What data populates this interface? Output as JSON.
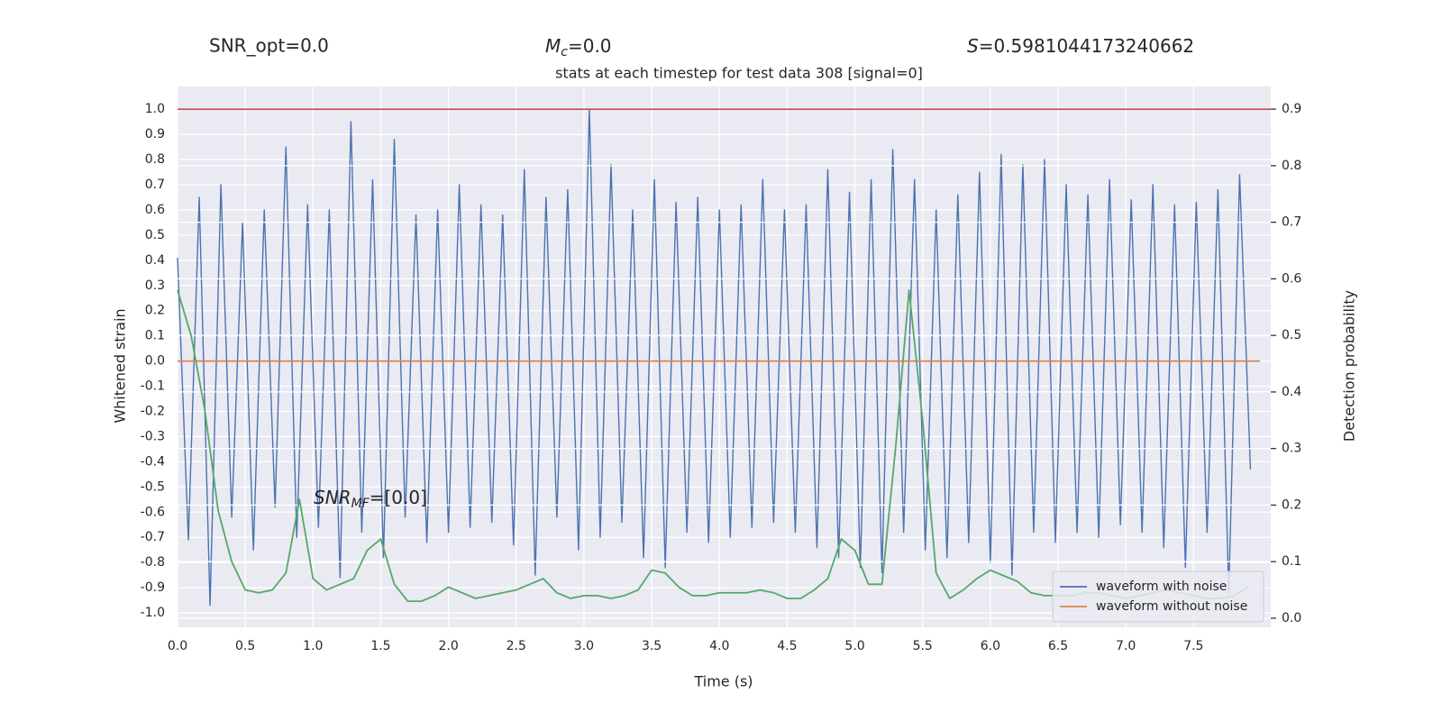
{
  "chart_data": {
    "type": "line",
    "title": "stats at each timestep for test data 308 [signal=0]",
    "annotations": {
      "snr_opt": "SNR_opt=0.0",
      "mc": {
        "main": "M",
        "sub": "c",
        "rest": "=0.0"
      },
      "s": {
        "main": "S",
        "rest": "=0.5981044173240662"
      },
      "snr_mf": {
        "main": "SNR",
        "sub": "MF",
        "rest": "=[0.0]"
      }
    },
    "xlabel": "Time (s)",
    "ylabel": "Whitened strain",
    "y2label": "Detection probability",
    "xlim": [
      0,
      8.07
    ],
    "ylim": [
      -1.057,
      1.09
    ],
    "y2lim": [
      -0.016,
      0.94
    ],
    "xticks": [
      {
        "value": 0,
        "label": "0.0"
      },
      0.5,
      {
        "value": 1,
        "label": "1.0"
      },
      1.5,
      {
        "value": 2,
        "label": "2.0"
      },
      2.5,
      {
        "value": 3,
        "label": "3.0"
      },
      3.5,
      {
        "value": 4,
        "label": "4.0"
      },
      4.5,
      {
        "value": 5,
        "label": "5.0"
      },
      5.5,
      {
        "value": 6,
        "label": "6.0"
      },
      6.5,
      {
        "value": 7,
        "label": "7.0"
      },
      7.5
    ],
    "yticks": [
      {
        "value": -1,
        "label": "-1.0"
      },
      -0.9,
      -0.8,
      -0.7,
      -0.6,
      -0.5,
      -0.4,
      -0.3,
      -0.2,
      -0.1,
      {
        "value": 0,
        "label": "0.0"
      },
      0.1,
      0.2,
      0.3,
      0.4,
      0.5,
      0.6,
      0.7,
      0.8,
      0.9,
      {
        "value": 1,
        "label": "1.0"
      }
    ],
    "y2ticks": [
      {
        "value": 0,
        "label": "0.0"
      },
      0.1,
      0.2,
      0.3,
      0.4,
      0.5,
      0.6,
      0.7,
      0.8,
      0.9
    ],
    "grid": true,
    "legend": "lower right",
    "hlines": [
      {
        "value": 1.0,
        "color": "#c44e52"
      }
    ],
    "series": [
      {
        "name": "waveform with noise",
        "color": "#4c72b0",
        "x": [
          0,
          0.08,
          0.16,
          0.24,
          0.32,
          0.4,
          0.48,
          0.56,
          0.64,
          0.72,
          0.8,
          0.88,
          0.96,
          1.04,
          1.12,
          1.2,
          1.28,
          1.36,
          1.44,
          1.52,
          1.6,
          1.68,
          1.76,
          1.84,
          1.92,
          2,
          2.08,
          2.16,
          2.24,
          2.32,
          2.4,
          2.48,
          2.56,
          2.64,
          2.72,
          2.8,
          2.88,
          2.96,
          3.04,
          3.12,
          3.2,
          3.28,
          3.36,
          3.44,
          3.52,
          3.6,
          3.68,
          3.76,
          3.84,
          3.92,
          4,
          4.08,
          4.16,
          4.24,
          4.32,
          4.4,
          4.48,
          4.56,
          4.64,
          4.72,
          4.8,
          4.88,
          4.96,
          5.04,
          5.12,
          5.2,
          5.28,
          5.36,
          5.44,
          5.52,
          5.6,
          5.68,
          5.76,
          5.84,
          5.92,
          6,
          6.08,
          6.16,
          6.24,
          6.32,
          6.4,
          6.48,
          6.56,
          6.64,
          6.72,
          6.8,
          6.88,
          6.96,
          7.04,
          7.12,
          7.2,
          7.28,
          7.36,
          7.44,
          7.52,
          7.6,
          7.68,
          7.76,
          7.84,
          7.92
        ],
        "values": [
          0.41,
          -0.71,
          0.65,
          -0.97,
          0.7,
          -0.62,
          0.55,
          -0.75,
          0.6,
          -0.58,
          0.85,
          -0.7,
          0.62,
          -0.66,
          0.6,
          -0.86,
          0.95,
          -0.68,
          0.72,
          -0.78,
          0.88,
          -0.62,
          0.58,
          -0.72,
          0.6,
          -0.68,
          0.7,
          -0.66,
          0.62,
          -0.64,
          0.58,
          -0.73,
          0.76,
          -0.85,
          0.65,
          -0.62,
          0.68,
          -0.75,
          1.0,
          -0.7,
          0.78,
          -0.64,
          0.6,
          -0.78,
          0.72,
          -0.82,
          0.63,
          -0.68,
          0.65,
          -0.72,
          0.6,
          -0.7,
          0.62,
          -0.66,
          0.72,
          -0.64,
          0.6,
          -0.68,
          0.62,
          -0.74,
          0.76,
          -0.78,
          0.67,
          -0.82,
          0.72,
          -0.84,
          0.84,
          -0.68,
          0.72,
          -0.75,
          0.6,
          -0.78,
          0.66,
          -0.72,
          0.75,
          -0.8,
          0.82,
          -0.85,
          0.78,
          -0.68,
          0.8,
          -0.72,
          0.7,
          -0.68,
          0.66,
          -0.7,
          0.72,
          -0.65,
          0.64,
          -0.68,
          0.7,
          -0.74,
          0.62,
          -0.82,
          0.63,
          -0.68,
          0.68,
          -0.92,
          0.74,
          -0.43
        ]
      },
      {
        "name": "waveform without noise",
        "color": "#dd8452",
        "x": [
          0,
          7.99
        ],
        "values": [
          0,
          0
        ]
      },
      {
        "color": "#55a868",
        "axis": "y2",
        "x": [
          0,
          0.1,
          0.2,
          0.3,
          0.4,
          0.5,
          0.6,
          0.7,
          0.8,
          0.9,
          1,
          1.1,
          1.2,
          1.3,
          1.4,
          1.5,
          1.6,
          1.7,
          1.8,
          1.9,
          2,
          2.1,
          2.2,
          2.3,
          2.4,
          2.5,
          2.6,
          2.7,
          2.8,
          2.9,
          3,
          3.1,
          3.2,
          3.3,
          3.4,
          3.5,
          3.6,
          3.7,
          3.8,
          3.9,
          4,
          4.1,
          4.2,
          4.3,
          4.4,
          4.5,
          4.6,
          4.7,
          4.8,
          4.9,
          5,
          5.1,
          5.2,
          5.3,
          5.4,
          5.5,
          5.6,
          5.7,
          5.8,
          5.9,
          6,
          6.1,
          6.2,
          6.3,
          6.4,
          6.5,
          6.6,
          6.7,
          6.8,
          6.9,
          7,
          7.1,
          7.2,
          7.3,
          7.4,
          7.5,
          7.6,
          7.7,
          7.8,
          7.9
        ],
        "values": [
          0.58,
          0.5,
          0.37,
          0.19,
          0.1,
          0.05,
          0.045,
          0.05,
          0.08,
          0.21,
          0.07,
          0.05,
          0.06,
          0.07,
          0.12,
          0.14,
          0.06,
          0.03,
          0.03,
          0.04,
          0.055,
          0.045,
          0.035,
          0.04,
          0.045,
          0.05,
          0.06,
          0.07,
          0.045,
          0.035,
          0.04,
          0.04,
          0.035,
          0.04,
          0.05,
          0.085,
          0.08,
          0.055,
          0.04,
          0.04,
          0.045,
          0.045,
          0.045,
          0.05,
          0.045,
          0.035,
          0.035,
          0.05,
          0.07,
          0.14,
          0.12,
          0.06,
          0.06,
          0.3,
          0.58,
          0.35,
          0.08,
          0.035,
          0.05,
          0.07,
          0.085,
          0.075,
          0.065,
          0.045,
          0.04,
          0.04,
          0.04,
          0.045,
          0.045,
          0.04,
          0.035,
          0.04,
          0.045,
          0.05,
          0.045,
          0.04,
          0.035,
          0.035,
          0.04,
          0.055
        ]
      }
    ]
  }
}
